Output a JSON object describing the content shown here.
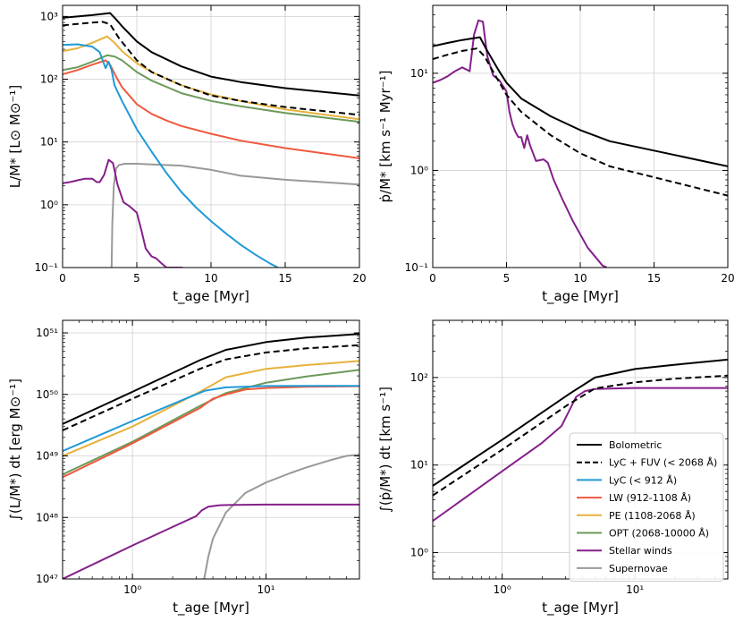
{
  "chart_data": [
    {
      "id": "tl",
      "type": "line",
      "xscale": "linear",
      "yscale": "log",
      "xlim": [
        0,
        20
      ],
      "ylim": [
        0.1,
        1500
      ],
      "xticks": [
        0,
        5,
        10,
        15,
        20
      ],
      "xtick_labels": [
        "0",
        "5",
        "10",
        "15",
        "20"
      ],
      "yticks": [
        0.1,
        1,
        10,
        100,
        1000
      ],
      "ytick_labels": [
        "10⁻¹",
        "10⁰",
        "10¹",
        "10²",
        "10³"
      ],
      "xlabel": "t_age [Myr]",
      "ylabel": "L/M* [L⊙ M⊙⁻¹]",
      "grid": true,
      "series": [
        {
          "key": "bol",
          "x": [
            0,
            1,
            2,
            3.2,
            3.6,
            4,
            5,
            6,
            8,
            10,
            12,
            15,
            20
          ],
          "y": [
            950,
            1000,
            1050,
            1130,
            900,
            700,
            400,
            270,
            160,
            110,
            90,
            72,
            55
          ]
        },
        {
          "key": "fuv",
          "x": [
            0,
            1,
            2,
            2.7,
            3.2,
            3.8,
            4.5,
            5,
            6,
            8,
            10,
            12,
            15,
            20
          ],
          "y": [
            720,
            760,
            800,
            820,
            750,
            450,
            280,
            200,
            130,
            80,
            55,
            45,
            36,
            27
          ]
        },
        {
          "key": "lyc",
          "x": [
            0,
            1,
            2,
            2.5,
            2.9,
            3.1,
            3.3,
            3.5,
            4,
            5,
            6,
            7,
            8,
            9,
            10,
            11,
            12,
            13,
            14,
            14.5
          ],
          "y": [
            350,
            360,
            330,
            270,
            150,
            190,
            140,
            80,
            45,
            16,
            7,
            3.2,
            1.6,
            0.9,
            0.55,
            0.35,
            0.23,
            0.16,
            0.115,
            0.1
          ]
        },
        {
          "key": "lw",
          "x": [
            0,
            1,
            2,
            2.9,
            3.2,
            3.6,
            4,
            5,
            6,
            7,
            8,
            10,
            12,
            15,
            20
          ],
          "y": [
            120,
            140,
            170,
            200,
            170,
            110,
            75,
            40,
            28,
            22,
            18,
            13.5,
            10.5,
            8,
            5.5
          ]
        },
        {
          "key": "pe",
          "x": [
            0,
            1,
            2,
            3,
            3.5,
            4,
            5,
            6,
            8,
            10,
            12,
            15,
            20
          ],
          "y": [
            280,
            310,
            380,
            480,
            380,
            280,
            180,
            130,
            80,
            57,
            45,
            33,
            23
          ]
        },
        {
          "key": "opt",
          "x": [
            0,
            1,
            2,
            3,
            3.5,
            4,
            5,
            6,
            8,
            10,
            12,
            15,
            20
          ],
          "y": [
            140,
            155,
            190,
            240,
            230,
            200,
            130,
            95,
            60,
            45,
            37,
            29,
            21
          ]
        },
        {
          "key": "sw",
          "x": [
            0,
            0.5,
            1,
            1.5,
            2,
            2.3,
            2.5,
            2.8,
            3.1,
            3.4,
            3.7,
            4.1,
            4.5,
            5,
            5.3,
            5.6,
            6,
            6.3,
            6.6,
            7,
            7.5,
            8,
            8.5
          ],
          "y": [
            2.2,
            2.3,
            2.45,
            2.6,
            2.6,
            2.3,
            2.3,
            3.0,
            5.2,
            4.6,
            2.1,
            1.1,
            0.95,
            0.75,
            0.4,
            0.2,
            0.15,
            0.14,
            0.12,
            0.1,
            0.1,
            0.1,
            0.095
          ]
        },
        {
          "key": "sn",
          "x": [
            3.3,
            3.35,
            3.45,
            3.6,
            3.8,
            4.2,
            5,
            6,
            8,
            10,
            12,
            15,
            20
          ],
          "y": [
            0.09,
            0.5,
            2.0,
            3.8,
            4.3,
            4.5,
            4.5,
            4.4,
            4.2,
            3.6,
            2.9,
            2.5,
            2.1
          ]
        }
      ]
    },
    {
      "id": "tr",
      "type": "line",
      "xscale": "linear",
      "yscale": "log",
      "xlim": [
        0,
        20
      ],
      "ylim": [
        0.1,
        50
      ],
      "xticks": [
        0,
        5,
        10,
        15,
        20
      ],
      "xtick_labels": [
        "0",
        "5",
        "10",
        "15",
        "20"
      ],
      "yticks": [
        0.1,
        1,
        10
      ],
      "ytick_labels": [
        "10⁻¹",
        "10⁰",
        "10¹"
      ],
      "xlabel": "t_age [Myr]",
      "ylabel": "ṗ/M* [km s⁻¹ Myr⁻¹]",
      "grid": true,
      "series": [
        {
          "key": "bol",
          "x": [
            0,
            1,
            2,
            3.2,
            3.7,
            4.5,
            5,
            6,
            8,
            10,
            12,
            15,
            20
          ],
          "y": [
            19,
            20.5,
            22,
            23.5,
            17,
            10.5,
            8,
            5.5,
            3.6,
            2.6,
            2.0,
            1.6,
            1.1
          ]
        },
        {
          "key": "fuv",
          "x": [
            0,
            1,
            2,
            3,
            3.5,
            4,
            5,
            6,
            8,
            10,
            12,
            15,
            20
          ],
          "y": [
            14,
            15.5,
            17,
            18,
            15,
            11,
            6,
            4,
            2.3,
            1.5,
            1.1,
            0.85,
            0.55
          ]
        },
        {
          "key": "sw",
          "x": [
            0,
            0.5,
            1,
            1.5,
            2,
            2.5,
            2.8,
            3.1,
            3.4,
            3.7,
            4.1,
            4.5,
            5,
            5.2,
            5.4,
            5.6,
            5.8,
            6,
            6.2,
            6.4,
            6.6,
            7,
            7.5,
            7.8,
            8.2,
            8.8,
            9.5,
            10.5,
            11.5,
            11.8
          ],
          "y": [
            8,
            8.5,
            9.3,
            10.5,
            11.5,
            10.5,
            25,
            35,
            34,
            15,
            9.5,
            8.5,
            6.5,
            4.0,
            3.0,
            2.5,
            2.2,
            2.2,
            1.7,
            2.3,
            1.8,
            1.25,
            1.3,
            1.2,
            0.8,
            0.5,
            0.3,
            0.16,
            0.105,
            0.1
          ]
        }
      ]
    },
    {
      "id": "bl",
      "type": "line",
      "xscale": "log",
      "yscale": "log",
      "xlim": [
        0.3,
        50
      ],
      "ylim": [
        1e+47,
        1.6e+51
      ],
      "xticks": [
        1,
        10
      ],
      "xtick_labels": [
        "10⁰",
        "10¹"
      ],
      "yticks": [
        1e+47,
        1e+48,
        1e+49,
        1e+50,
        1e+51
      ],
      "ytick_labels": [
        "10⁴⁷",
        "10⁴⁸",
        "10⁴⁹",
        "10⁵⁰",
        "10⁵¹"
      ],
      "xlabel": "t_age [Myr]",
      "ylabel": "∫(L/M*) dt [erg M⊙⁻¹]",
      "grid": true,
      "series": [
        {
          "key": "bol",
          "x": [
            0.3,
            1,
            3.2,
            5,
            10,
            20,
            50
          ],
          "y": [
            3.3e+49,
            1.1e+50,
            3.6e+50,
            5.3e+50,
            7.1e+50,
            8.4e+50,
            9.6e+50
          ]
        },
        {
          "key": "fuv",
          "x": [
            0.3,
            1,
            3.2,
            5,
            10,
            20,
            50
          ],
          "y": [
            2.6e+49,
            8.5e+49,
            2.6e+50,
            3.7e+50,
            4.8e+50,
            5.6e+50,
            6.3e+50
          ]
        },
        {
          "key": "lyc",
          "x": [
            0.3,
            1,
            2.5,
            3.5,
            5,
            10,
            20,
            50
          ],
          "y": [
            1.2e+49,
            3.7e+49,
            8.5e+49,
            1.15e+50,
            1.3e+50,
            1.37e+50,
            1.38e+50,
            1.38e+50
          ]
        },
        {
          "key": "lw",
          "x": [
            0.3,
            1,
            3.2,
            4,
            5,
            7,
            10,
            20,
            50
          ],
          "y": [
            4.5e+48,
            1.6e+49,
            6e+49,
            8.5e+49,
            1e+50,
            1.2e+50,
            1.27e+50,
            1.33e+50,
            1.36e+50
          ]
        },
        {
          "key": "pe",
          "x": [
            0.3,
            1,
            3.2,
            5,
            10,
            20,
            50
          ],
          "y": [
            1e+49,
            3e+49,
            1.1e+50,
            1.9e+50,
            2.6e+50,
            3e+50,
            3.5e+50
          ]
        },
        {
          "key": "opt",
          "x": [
            0.3,
            1,
            3.2,
            5,
            10,
            20,
            50
          ],
          "y": [
            5e+48,
            1.7e+49,
            6.5e+49,
            1.05e+50,
            1.55e+50,
            1.95e+50,
            2.5e+50
          ]
        },
        {
          "key": "sw",
          "x": [
            0.3,
            1,
            2,
            3,
            3.3,
            3.7,
            4.5,
            6,
            10,
            50
          ],
          "y": [
            1e+47,
            3.5e+47,
            7e+47,
            1.05e+48,
            1.3e+48,
            1.5e+48,
            1.58e+48,
            1.6e+48,
            1.62e+48,
            1.62e+48
          ]
        },
        {
          "key": "sn",
          "x": [
            3.4,
            3.5,
            3.7,
            4,
            5,
            7,
            10,
            15,
            20,
            30,
            40,
            50
          ],
          "y": [
            9e+46,
            1.2e+47,
            2.3e+47,
            4.5e+47,
            1.2e+48,
            2.5e+48,
            3.7e+48,
            5.2e+48,
            6.5e+48,
            8.5e+48,
            1e+49,
            1.05e+49
          ]
        }
      ]
    },
    {
      "id": "br",
      "type": "line",
      "xscale": "log",
      "yscale": "log",
      "xlim": [
        0.3,
        50
      ],
      "ylim": [
        0.5,
        450
      ],
      "xticks": [
        1,
        10
      ],
      "xtick_labels": [
        "10⁰",
        "10¹"
      ],
      "yticks": [
        1,
        10,
        100
      ],
      "ytick_labels": [
        "10⁰",
        "10¹",
        "10²"
      ],
      "xlabel": "t_age [Myr]",
      "ylabel": "∫(ṗ/M*) dt [km s⁻¹]",
      "grid": true,
      "series": [
        {
          "key": "bol",
          "x": [
            0.3,
            1,
            3.2,
            5,
            10,
            20,
            50
          ],
          "y": [
            5.8,
            19.5,
            65,
            100,
            125,
            140,
            160
          ]
        },
        {
          "key": "fuv",
          "x": [
            0.3,
            1,
            3.2,
            5,
            10,
            20,
            50
          ],
          "y": [
            4.5,
            15,
            50,
            75,
            88,
            97,
            105
          ]
        },
        {
          "key": "sw",
          "x": [
            0.3,
            1,
            2,
            2.8,
            3.2,
            3.6,
            4.2,
            5,
            7,
            10,
            50
          ],
          "y": [
            2.3,
            8.5,
            18,
            28,
            42,
            60,
            70,
            74,
            75,
            76,
            76
          ]
        }
      ]
    }
  ],
  "legend": {
    "placement": "lower-right",
    "entries": [
      {
        "key": "bol",
        "label": "Bolometric",
        "color": "#000000",
        "dash": false
      },
      {
        "key": "fuv",
        "label": "LyC + FUV (< 2068 Å)",
        "color": "#000000",
        "dash": true
      },
      {
        "key": "lyc",
        "label": "LyC (< 912 Å)",
        "color": "#1f9ad6",
        "dash": false
      },
      {
        "key": "lw",
        "label": "LW (912-1108 Å)",
        "color": "#f0593e",
        "dash": false
      },
      {
        "key": "pe",
        "label": "PE (1108-2068 Å)",
        "color": "#e8b13c",
        "dash": false
      },
      {
        "key": "opt",
        "label": "OPT (2068-10000 Å)",
        "color": "#6b9a5a",
        "dash": false
      },
      {
        "key": "sw",
        "label": "Stellar winds",
        "color": "#851f8b",
        "dash": false
      },
      {
        "key": "sn",
        "label": "Supernovae",
        "color": "#999999",
        "dash": false
      }
    ]
  }
}
